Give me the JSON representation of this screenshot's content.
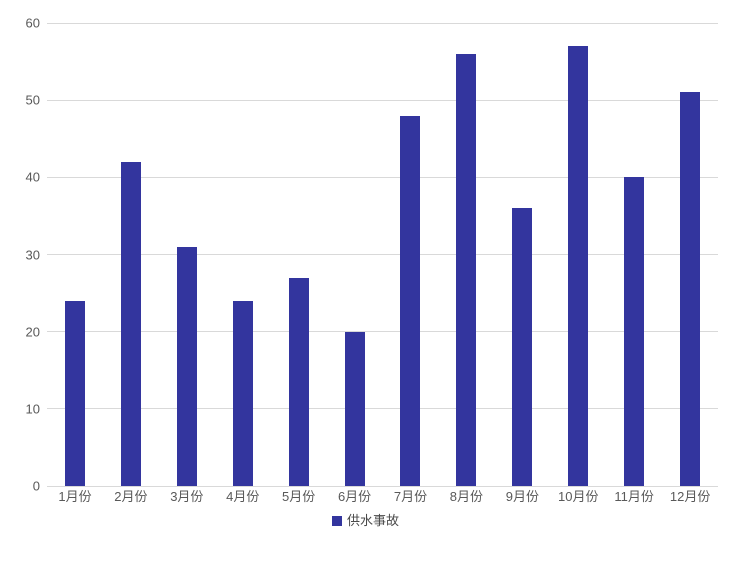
{
  "chart_data": {
    "type": "bar",
    "title": "",
    "xlabel": "",
    "ylabel": "",
    "categories": [
      "1月份",
      "2月份",
      "3月份",
      "4月份",
      "5月份",
      "6月份",
      "7月份",
      "8月份",
      "9月份",
      "10月份",
      "11月份",
      "12月份"
    ],
    "series": [
      {
        "name": "供水事故",
        "values": [
          24,
          42,
          31,
          24,
          27,
          20,
          48,
          56,
          36,
          57,
          40,
          51
        ]
      }
    ],
    "ylim": [
      0,
      60
    ],
    "yticks": [
      0,
      10,
      20,
      30,
      40,
      50,
      60
    ],
    "grid": true,
    "legend_position": "bottom",
    "colors": {
      "bar": "#33359e",
      "gridline": "#d9d9d9",
      "axis_label": "#595959",
      "legend_text": "#4a4a4a",
      "background": "#ffffff"
    }
  }
}
